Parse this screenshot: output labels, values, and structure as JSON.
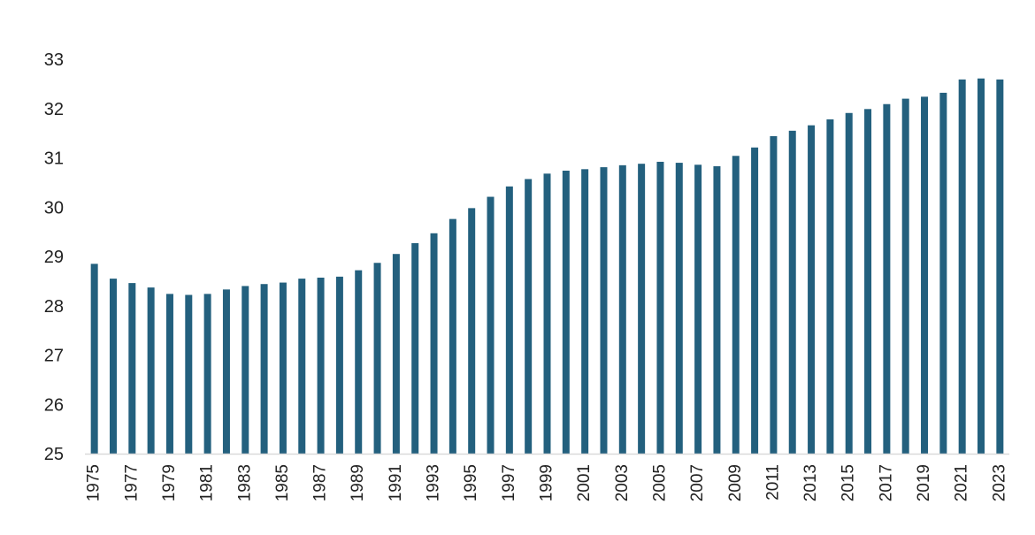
{
  "chart_data": {
    "type": "bar",
    "title": "",
    "xlabel": "",
    "ylabel": "",
    "ylim": [
      25,
      33
    ],
    "y_ticks": [
      25,
      26,
      27,
      28,
      29,
      30,
      31,
      32,
      33
    ],
    "grid": false,
    "legend": "none",
    "bar_color": "#23607e",
    "axis_color": "#d9d9d9",
    "categories": [
      "1975",
      "1976",
      "1977",
      "1978",
      "1979",
      "1980",
      "1981",
      "1982",
      "1983",
      "1984",
      "1985",
      "1986",
      "1987",
      "1988",
      "1989",
      "1990",
      "1991",
      "1992",
      "1993",
      "1994",
      "1995",
      "1996",
      "1997",
      "1998",
      "1999",
      "2000",
      "2001",
      "2002",
      "2003",
      "2004",
      "2005",
      "2006",
      "2007",
      "2008",
      "2009",
      "2010",
      "2011",
      "2012",
      "2013",
      "2014",
      "2015",
      "2016",
      "2017",
      "2018",
      "2019",
      "2020",
      "2021",
      "2022",
      "2023"
    ],
    "x_tick_labels": [
      "1975",
      "1977",
      "1979",
      "1981",
      "1983",
      "1985",
      "1987",
      "1989",
      "1991",
      "1993",
      "1995",
      "1997",
      "1999",
      "2001",
      "2003",
      "2005",
      "2007",
      "2009",
      "2011",
      "2013",
      "2015",
      "2017",
      "2019",
      "2021",
      "2023"
    ],
    "values": [
      28.85,
      28.55,
      28.46,
      28.37,
      28.24,
      28.22,
      28.24,
      28.33,
      28.4,
      28.44,
      28.47,
      28.55,
      28.57,
      28.59,
      28.72,
      28.87,
      29.05,
      29.27,
      29.47,
      29.76,
      29.98,
      30.21,
      30.42,
      30.57,
      30.68,
      30.74,
      30.77,
      30.81,
      30.85,
      30.88,
      30.92,
      30.9,
      30.86,
      30.83,
      31.04,
      31.21,
      31.44,
      31.55,
      31.66,
      31.78,
      31.91,
      31.99,
      32.09,
      32.2,
      32.24,
      32.32,
      32.59,
      32.61,
      32.59
    ]
  }
}
